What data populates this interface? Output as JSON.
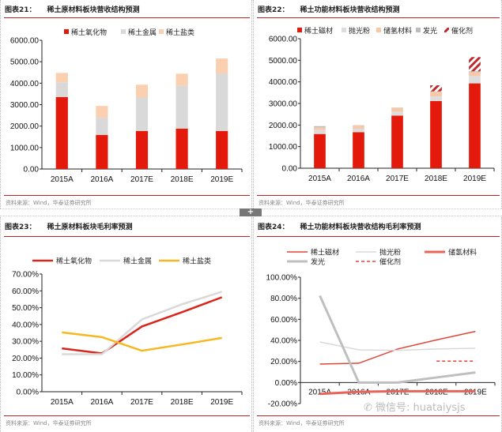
{
  "source": "资料来源：Wind，华泰证券研究所",
  "expand_button": "+",
  "watermark": {
    "icon": "wechat-icon",
    "text": "微信号: huataiysjs"
  },
  "chart_data": [
    {
      "type": "bar",
      "stacked": true,
      "label": "图表21：",
      "title": "稀土原材料板块营收结构预测",
      "categories": [
        "2015A",
        "2016A",
        "2017E",
        "2018E",
        "2019E"
      ],
      "ylim": [
        0,
        6000
      ],
      "yticks": [
        "0.00",
        "1000.00",
        "2000.00",
        "3000.00",
        "4000.00",
        "5000.00",
        "6000.00"
      ],
      "legend": "top",
      "series": [
        {
          "name": "稀土氧化物",
          "color": "#e31a0b",
          "values": [
            3350,
            1590,
            1775,
            1885,
            1775
          ]
        },
        {
          "name": "稀土金属",
          "color": "#d9d9d9",
          "values": [
            690,
            800,
            1555,
            1995,
            2680
          ]
        },
        {
          "name": "稀土盐类",
          "color": "#fbd0b0",
          "values": [
            440,
            550,
            600,
            560,
            695
          ]
        }
      ]
    },
    {
      "type": "bar",
      "stacked": true,
      "label": "图表22：",
      "title": "稀土功能材料板块营收结构预测",
      "categories": [
        "2015A",
        "2016A",
        "2017E",
        "2018E",
        "2019E"
      ],
      "ylim": [
        0,
        6000
      ],
      "yticks": [
        "0.00",
        "1000.00",
        "2000.00",
        "3000.00",
        "4000.00",
        "5000.00",
        "6000.00"
      ],
      "legend": "top",
      "series": [
        {
          "name": "稀土磁材",
          "color": "#e31a0b",
          "values": [
            1585,
            1670,
            2440,
            3110,
            3930
          ]
        },
        {
          "name": "抛光粉",
          "color": "#dddddd",
          "values": [
            185,
            160,
            180,
            210,
            340
          ]
        },
        {
          "name": "储氢材料",
          "color": "#f8c8a8",
          "values": [
            120,
            145,
            180,
            220,
            180
          ]
        },
        {
          "name": "发光",
          "color": "#bdbdbd",
          "values": [
            60,
            15,
            10,
            20,
            40
          ]
        },
        {
          "name": "催化剂",
          "color": "#c0282a",
          "pattern": "hatch",
          "values": [
            0,
            0,
            0,
            280,
            660
          ]
        }
      ]
    },
    {
      "type": "line",
      "label": "图表23：",
      "title": "稀土原材料板块毛利率预测",
      "categories": [
        "2015A",
        "2016A",
        "2017E",
        "2018E",
        "2019E"
      ],
      "ylim": [
        0,
        70
      ],
      "yticks": [
        "0.00%",
        "10.00%",
        "20.00%",
        "30.00%",
        "40.00%",
        "50.00%",
        "60.00%",
        "70.00%"
      ],
      "legend": "top",
      "series": [
        {
          "name": "稀土氧化物",
          "color": "#d9261c",
          "width": 2.5,
          "values": [
            25.8,
            22.8,
            38.8,
            47.3,
            56.2
          ]
        },
        {
          "name": "稀土金属",
          "color": "#d9d9d9",
          "width": 2.5,
          "values": [
            22.3,
            22.3,
            43,
            52,
            59.5
          ]
        },
        {
          "name": "稀土盐类",
          "color": "#f5b820",
          "width": 2.5,
          "values": [
            35.3,
            32.5,
            24.4,
            28.1,
            32
          ]
        }
      ]
    },
    {
      "type": "line",
      "label": "图表24：",
      "title": "稀土功能材料板块营收结构毛利率预测",
      "categories": [
        "2015A",
        "2016A",
        "2017E",
        "2018E",
        "2019E"
      ],
      "ylim": [
        -20,
        100
      ],
      "yticks": [
        "-20.00%",
        "0.00%",
        "20.00%",
        "40.00%",
        "60.00%",
        "80.00%",
        "100.00%"
      ],
      "legend": "top",
      "series": [
        {
          "name": "稀土磁材",
          "color": "#e0453a",
          "width": 1.5,
          "values": [
            17.5,
            18.3,
            31.8,
            40.5,
            48.5
          ]
        },
        {
          "name": "抛光粉",
          "color": "#d9d9d9",
          "width": 1.5,
          "values": [
            38.5,
            31,
            30.5,
            31.8,
            32.5
          ]
        },
        {
          "name": "储氢材料",
          "color": "#e8635a",
          "width": 3,
          "values": [
            -10.8,
            -8.8,
            -8.3,
            -8.3,
            -8.3
          ]
        },
        {
          "name": "发光",
          "color": "#bfbfbf",
          "width": 3,
          "values": [
            82.5,
            0,
            0,
            4.8,
            9.5
          ]
        },
        {
          "name": "催化剂",
          "color": "#e0453a",
          "width": 1.5,
          "dash": true,
          "values": [
            null,
            null,
            null,
            20.3,
            20.3
          ]
        }
      ]
    }
  ]
}
